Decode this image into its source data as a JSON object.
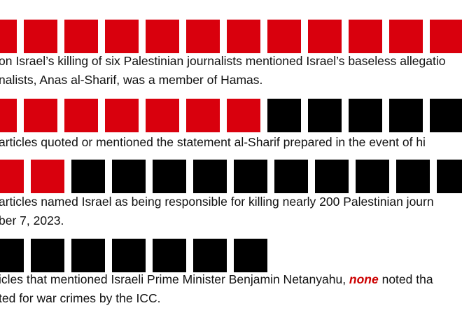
{
  "colors": {
    "red": "#d9000d",
    "black": "#000000"
  },
  "chart_data": {
    "type": "waffle",
    "rows": [
      {
        "red": 12,
        "black": 0
      },
      {
        "red": 7,
        "black": 5
      },
      {
        "red": 2,
        "black": 10
      },
      {
        "red": 0,
        "black": 7
      }
    ]
  },
  "captions": [
    {
      "line1": "on Israel’s killing of six Palestinian journalists mentioned Israel’s baseless allegatio",
      "line2": "nalists, Anas al-Sharif, was a member of Hamas."
    },
    {
      "line1": " articles quoted or mentioned the statement al-Sharif prepared in the event of hi"
    },
    {
      "line1": " articles named Israel as being responsible for killing nearly 200 Palestinian journ",
      "line2": "ber 7, 2023."
    },
    {
      "line1_before": "icles that mentioned Israeli Prime Minister Benjamin Netanyahu, ",
      "line1_highlight": "none",
      "line1_after": " noted tha",
      "line2": "ted for war crimes by the ICC."
    }
  ]
}
